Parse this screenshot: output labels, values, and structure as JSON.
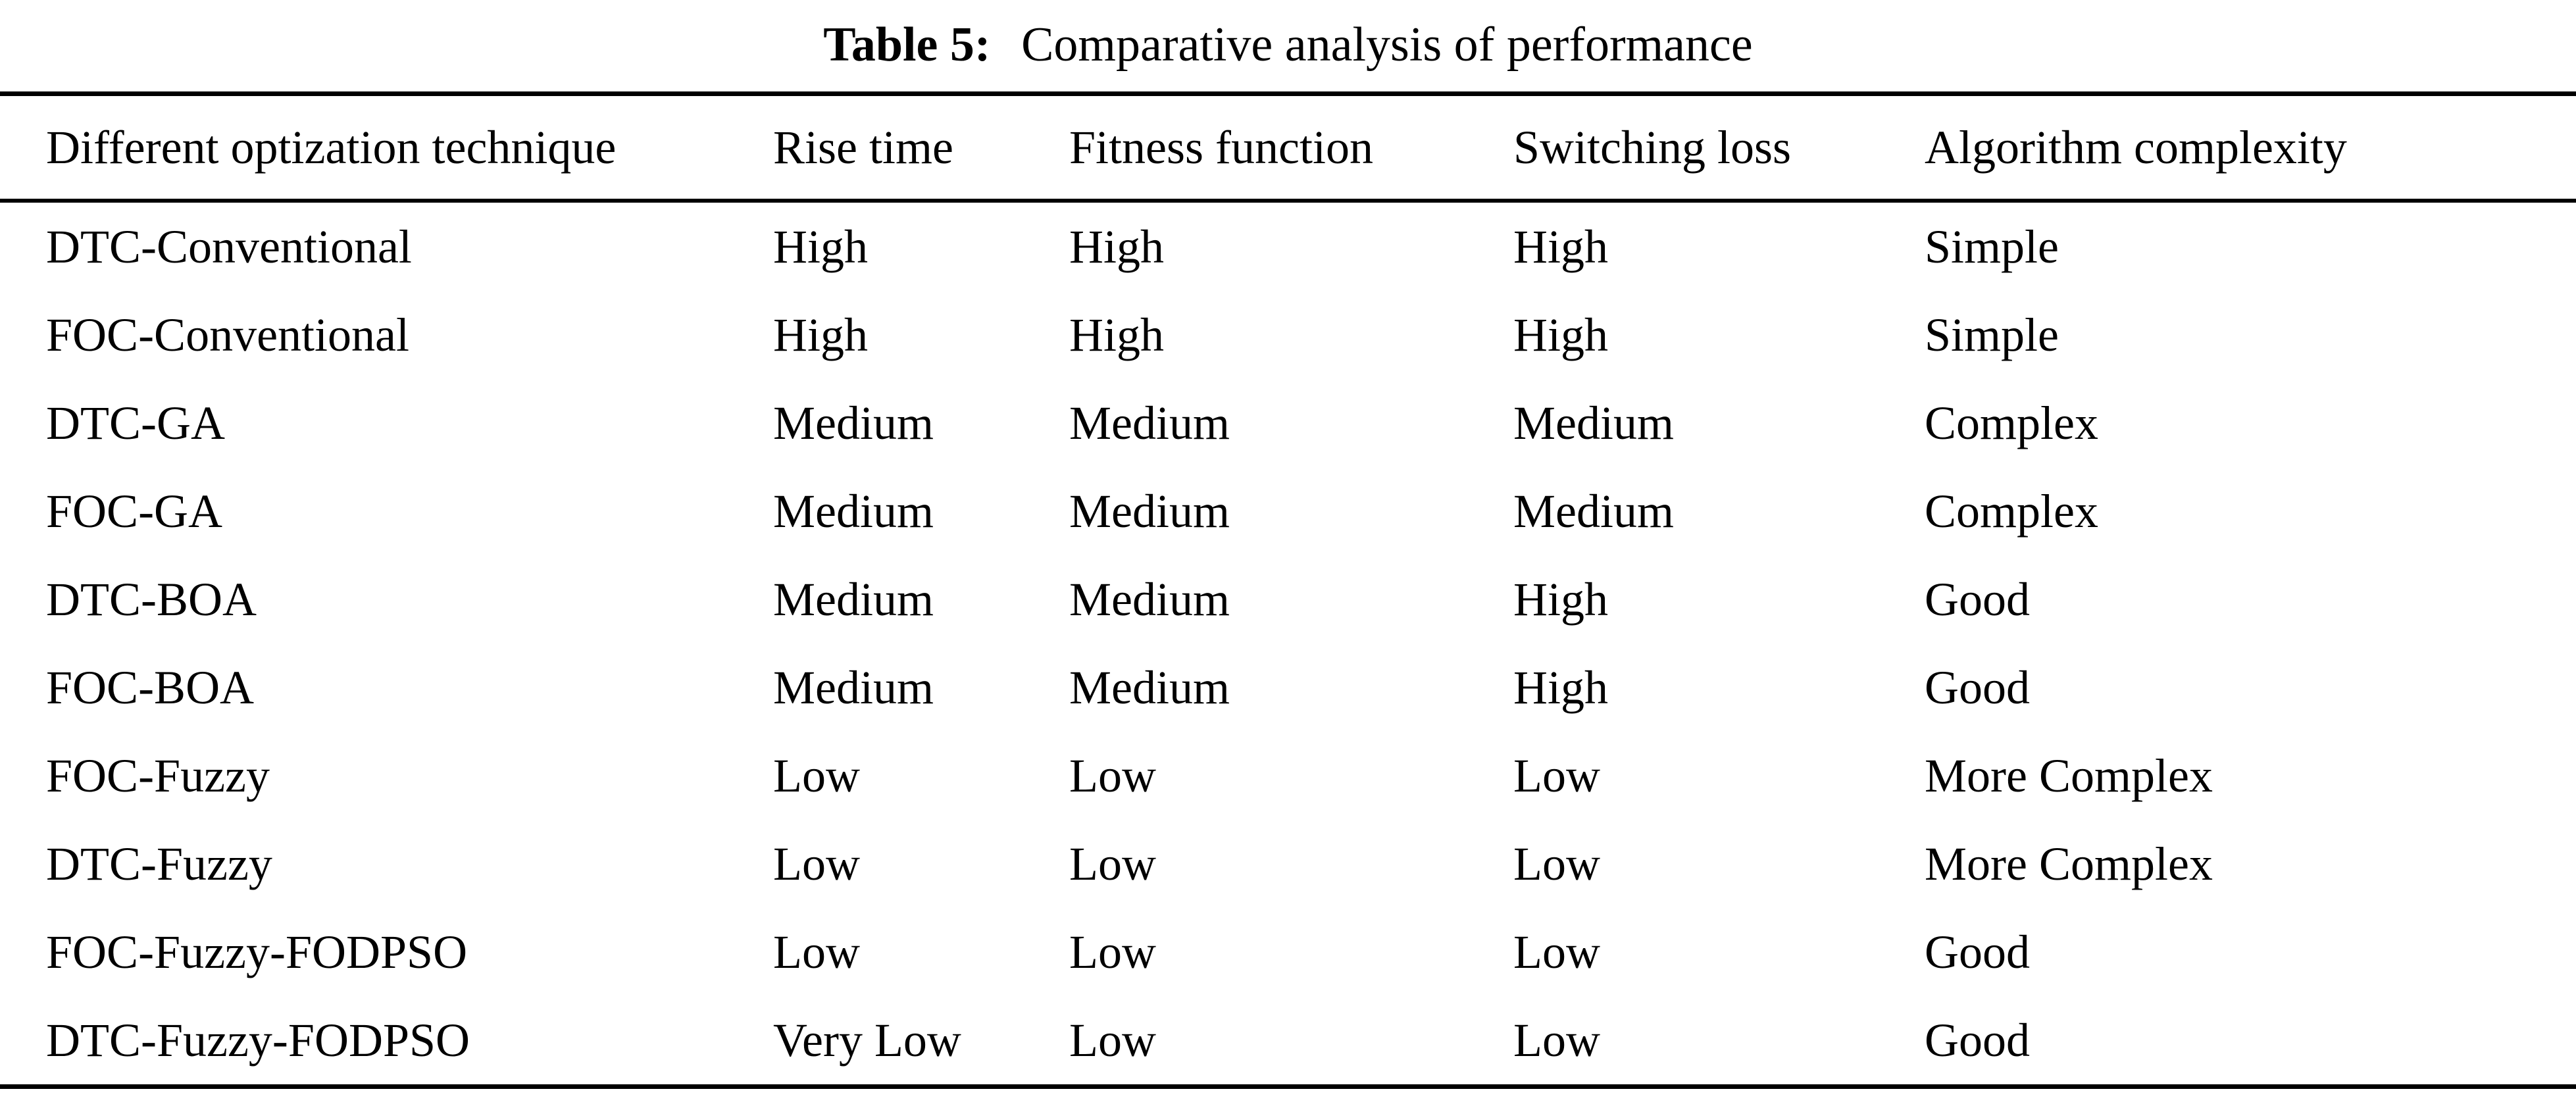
{
  "caption": {
    "label": "Table 5:",
    "text": "Comparative analysis of performance"
  },
  "table": {
    "headers": [
      "Different optization technique",
      "Rise time",
      "Fitness function",
      "Switching loss",
      "Algorithm complexity"
    ],
    "rows": [
      [
        "DTC-Conventional",
        "High",
        "High",
        "High",
        "Simple"
      ],
      [
        "FOC-Conventional",
        "High",
        "High",
        "High",
        "Simple"
      ],
      [
        "DTC-GA",
        "Medium",
        "Medium",
        "Medium",
        "Complex"
      ],
      [
        "FOC-GA",
        "Medium",
        "Medium",
        "Medium",
        "Complex"
      ],
      [
        "DTC-BOA",
        "Medium",
        "Medium",
        "High",
        "Good"
      ],
      [
        "FOC-BOA",
        "Medium",
        "Medium",
        "High",
        "Good"
      ],
      [
        "FOC-Fuzzy",
        "Low",
        "Low",
        "Low",
        "More Complex"
      ],
      [
        "DTC-Fuzzy",
        "Low",
        "Low",
        "Low",
        "More Complex"
      ],
      [
        "FOC-Fuzzy-FODPSO",
        "Low",
        "Low",
        "Low",
        "Good"
      ],
      [
        "DTC-Fuzzy-FODPSO",
        "Very Low",
        "Low",
        "Low",
        "Good"
      ]
    ]
  }
}
